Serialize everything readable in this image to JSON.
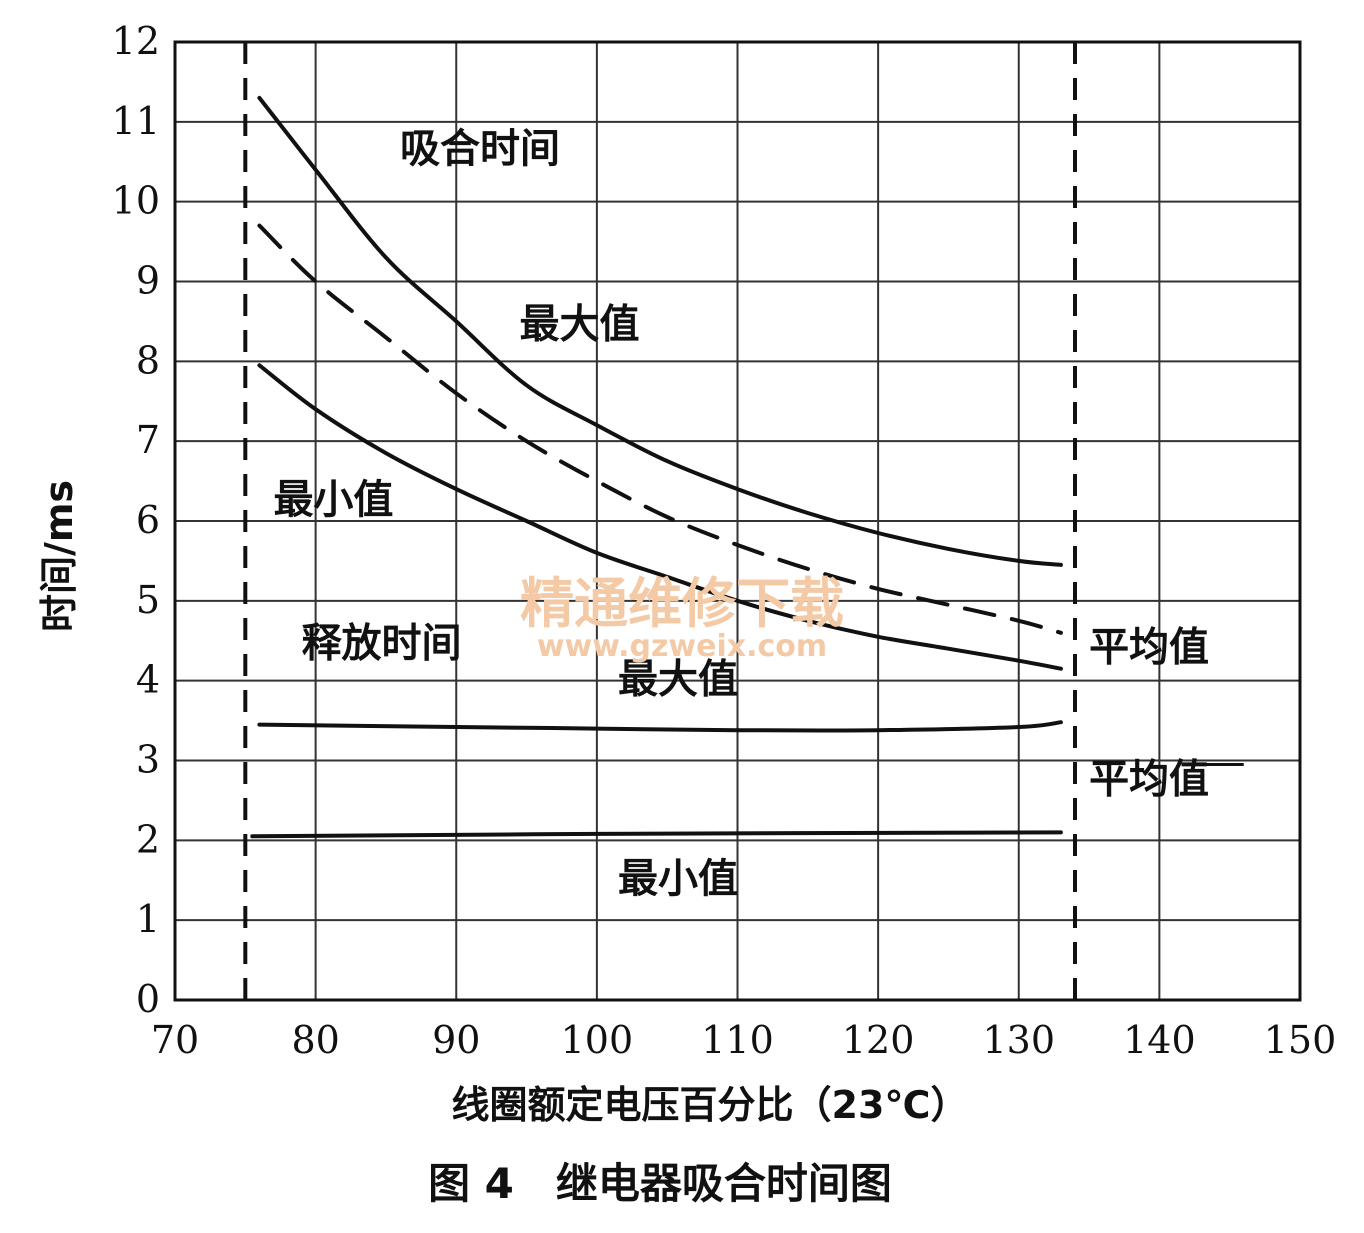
{
  "chart_data": {
    "type": "line",
    "xlabel": "线圈额定电压百分比（23℃）",
    "ylabel": "时间/ms",
    "caption": "图 4　继电器吸合时间图",
    "xlim": [
      70,
      150
    ],
    "ylim": [
      0,
      12
    ],
    "xticks": [
      70,
      80,
      90,
      100,
      110,
      120,
      130,
      140,
      150
    ],
    "yticks": [
      0,
      1,
      2,
      3,
      4,
      5,
      6,
      7,
      8,
      9,
      10,
      11,
      12
    ],
    "grid": true,
    "bounds": {
      "lower": 75,
      "upper": 134,
      "style": "dashed"
    },
    "series": [
      {
        "name": "吸合时间 最大值",
        "style": "solid",
        "x": [
          76,
          80,
          85,
          90,
          95,
          100,
          105,
          110,
          115,
          120,
          125,
          130,
          133
        ],
        "y": [
          11.3,
          10.4,
          9.3,
          8.5,
          7.7,
          7.2,
          6.75,
          6.4,
          6.1,
          5.85,
          5.65,
          5.5,
          5.45
        ]
      },
      {
        "name": "吸合时间 平均值",
        "style": "dashed",
        "x": [
          76,
          80,
          85,
          90,
          95,
          100,
          105,
          110,
          115,
          120,
          125,
          130,
          133
        ],
        "y": [
          9.7,
          9.0,
          8.3,
          7.6,
          7.0,
          6.5,
          6.05,
          5.7,
          5.4,
          5.15,
          4.95,
          4.75,
          4.6
        ]
      },
      {
        "name": "吸合时间 最小值",
        "style": "solid",
        "x": [
          76,
          80,
          85,
          90,
          95,
          100,
          105,
          110,
          115,
          120,
          125,
          130,
          133
        ],
        "y": [
          7.95,
          7.4,
          6.85,
          6.4,
          6.0,
          5.6,
          5.3,
          5.0,
          4.75,
          4.55,
          4.4,
          4.25,
          4.15
        ]
      },
      {
        "name": "释放时间 平均值",
        "style": "solid",
        "x": [
          76,
          90,
          100,
          110,
          120,
          130,
          133
        ],
        "y": [
          3.45,
          3.42,
          3.4,
          3.38,
          3.38,
          3.42,
          3.48
        ]
      },
      {
        "name": "释放时间 最小值",
        "style": "solid",
        "x": [
          75.5,
          100,
          133
        ],
        "y": [
          2.05,
          2.08,
          2.1
        ]
      }
    ],
    "annotations": [
      {
        "text": "吸合时间",
        "x": 86,
        "y": 10.5
      },
      {
        "text": "最大值",
        "x": 94.5,
        "y": 8.3
      },
      {
        "text": "最小值",
        "x": 77,
        "y": 6.1
      },
      {
        "text": "释放时间",
        "x": 79,
        "y": 4.3
      },
      {
        "text": "最大值",
        "x": 101.5,
        "y": 3.85
      },
      {
        "text": "平均值",
        "x": 135,
        "y": 4.25
      },
      {
        "text": "平均值",
        "x": 135,
        "y": 2.6
      },
      {
        "text": "最小值",
        "x": 101.5,
        "y": 1.35
      }
    ],
    "stub": {
      "x": [
        142,
        146
      ],
      "y": [
        2.95,
        2.95
      ]
    }
  },
  "watermark": {
    "line1": "精通维修下载",
    "line2": "www.gzweix.com"
  }
}
